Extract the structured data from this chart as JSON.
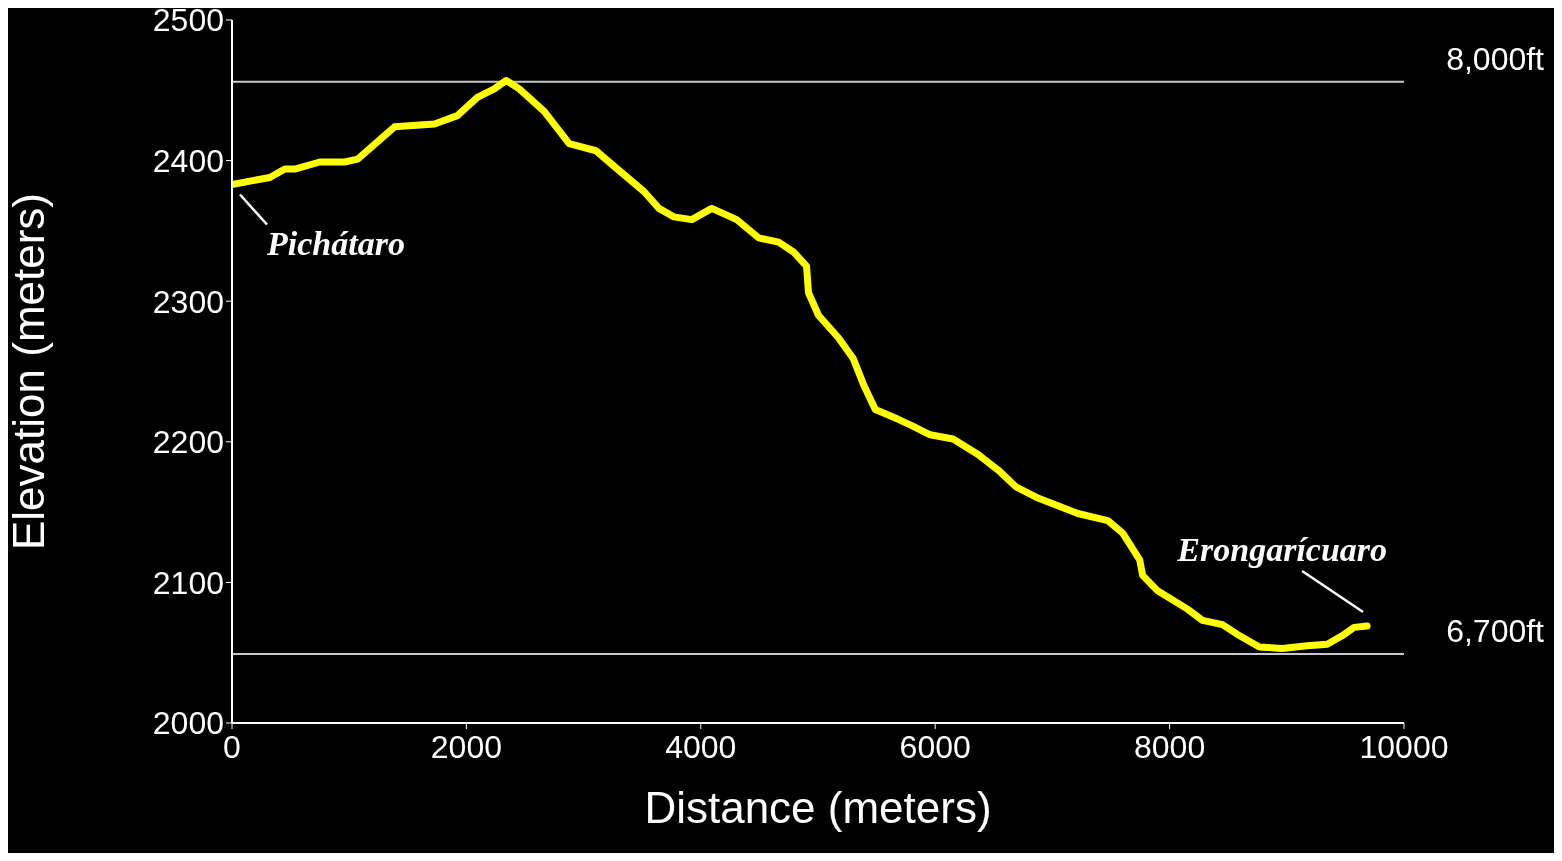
{
  "chart_data": {
    "type": "line",
    "xlabel": "Distance (meters)",
    "ylabel": "Elevation (meters)",
    "x": [
      0,
      323,
      451,
      536,
      749,
      962,
      1072,
      1387,
      1728,
      1923,
      2094,
      2238,
      2340,
      2451,
      2664,
      2877,
      3106,
      3260,
      3515,
      3643,
      3770,
      3923,
      4094,
      4306,
      4494,
      4664,
      4791,
      4902,
      4919,
      5004,
      5174,
      5302,
      5387,
      5489,
      5685,
      5813,
      5957,
      6153,
      6366,
      6536,
      6689,
      6877,
      7217,
      7472,
      7600,
      7745,
      7770,
      7898,
      8153,
      8281,
      8451,
      8579,
      8766,
      8962,
      9174,
      9345,
      9472,
      9574,
      9685
    ],
    "series": [
      {
        "color": "#ffff00",
        "values": [
          2383,
          2388,
          2394,
          2394,
          2399,
          2399,
          2401,
          2424,
          2426,
          2432,
          2445,
          2451,
          2457,
          2451,
          2435,
          2412,
          2407,
          2396,
          2378,
          2366,
          2360,
          2358,
          2366,
          2358,
          2345,
          2342,
          2335,
          2325,
          2306,
          2290,
          2274,
          2259,
          2241,
          2223,
          2216,
          2211,
          2205,
          2202,
          2191,
          2180,
          2168,
          2160,
          2149,
          2144,
          2135,
          2116,
          2105,
          2094,
          2081,
          2073,
          2070,
          2063,
          2054,
          2053,
          2055,
          2056,
          2062,
          2068,
          2069
        ]
      }
    ],
    "xlim": [
      0,
      10000
    ],
    "xticks": [
      0,
      2000,
      4000,
      6000,
      8000,
      10000
    ],
    "ylim": [
      2000,
      2500
    ],
    "yticks": [
      2000,
      2100,
      2200,
      2300,
      2400,
      2500
    ],
    "ref_lines": [
      {
        "axis": "y",
        "value": 2456,
        "label": "8,000ft",
        "color": "#c8c8c8"
      },
      {
        "axis": "y",
        "value": 2049,
        "label": "6,700ft",
        "color": "#c8c8c8"
      }
    ],
    "annotations": [
      {
        "text": "Pichátaro",
        "x": 0,
        "y": 2383
      },
      {
        "text": "Erongarícuaro",
        "x": 9685,
        "y": 2069
      }
    ],
    "grid": false,
    "legend": false,
    "marker": "none",
    "line_style": "solid"
  }
}
